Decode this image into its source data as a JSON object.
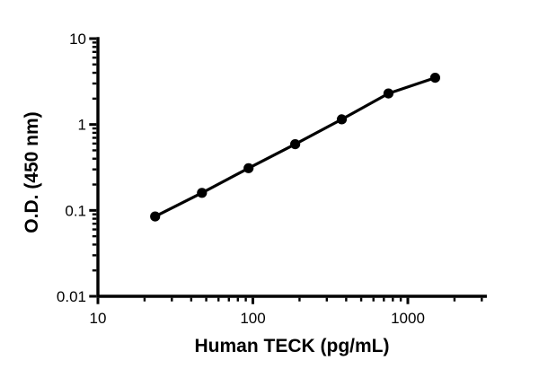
{
  "figure": {
    "background": "#ffffff",
    "axis_color": "#000000"
  },
  "chart_data": {
    "type": "line",
    "title": "",
    "xlabel": "Human TECK (pg/mL)",
    "ylabel": "O.D. (450 nm)",
    "x_scale": "log",
    "y_scale": "log",
    "xlim": [
      10,
      3162
    ],
    "ylim": [
      0.01,
      10
    ],
    "x_major_ticks": [
      10,
      100,
      1000
    ],
    "x_tick_labels": [
      "10",
      "100",
      "1000"
    ],
    "y_major_ticks": [
      0.01,
      0.1,
      1,
      10
    ],
    "y_tick_labels": [
      "0.01",
      "0.1",
      "1",
      "10"
    ],
    "grid": false,
    "legend": null,
    "series": [
      {
        "name": "standard-curve",
        "marker": "filled-circle",
        "line_style": "solid",
        "color": "#000000",
        "x": [
          23.4,
          46.9,
          93.8,
          187.5,
          375,
          750,
          1500
        ],
        "y": [
          0.085,
          0.16,
          0.31,
          0.59,
          1.15,
          2.3,
          3.5
        ]
      }
    ]
  }
}
